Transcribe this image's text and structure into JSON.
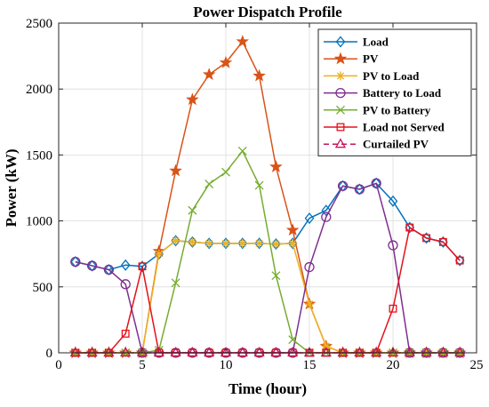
{
  "chart_data": {
    "type": "line",
    "title": "Power Dispatch Profile",
    "xlabel": "Time (hour)",
    "ylabel": "Power (kW)",
    "xlim": [
      0,
      25
    ],
    "ylim": [
      0,
      2500
    ],
    "xticks": [
      0,
      5,
      10,
      15,
      20,
      25
    ],
    "yticks": [
      0,
      500,
      1000,
      1500,
      2000,
      2500
    ],
    "grid": true,
    "legend_position": "top-right",
    "x": [
      1,
      2,
      3,
      4,
      5,
      6,
      7,
      8,
      9,
      10,
      11,
      12,
      13,
      14,
      15,
      16,
      17,
      18,
      19,
      20,
      21,
      22,
      23,
      24
    ],
    "series": [
      {
        "name": "Load",
        "color": "#0072BD",
        "marker": "diamond",
        "dashed": false,
        "values": [
          690,
          660,
          630,
          665,
          655,
          750,
          850,
          840,
          830,
          830,
          830,
          830,
          825,
          830,
          1020,
          1080,
          1265,
          1240,
          1285,
          1150,
          950,
          870,
          840,
          700
        ]
      },
      {
        "name": "PV",
        "color": "#D95319",
        "marker": "star",
        "dashed": false,
        "values": [
          0,
          0,
          0,
          0,
          0,
          770,
          1380,
          1920,
          2110,
          2200,
          2360,
          2100,
          1410,
          930,
          370,
          50,
          0,
          0,
          0,
          0,
          0,
          0,
          0,
          0
        ]
      },
      {
        "name": "PV to Load",
        "color": "#EDB120",
        "marker": "asterisk",
        "dashed": false,
        "values": [
          0,
          0,
          0,
          0,
          0,
          750,
          850,
          840,
          830,
          830,
          830,
          830,
          825,
          830,
          370,
          50,
          0,
          0,
          0,
          0,
          0,
          0,
          0,
          0
        ]
      },
      {
        "name": "Battery to Load",
        "color": "#7E2F8E",
        "marker": "circle",
        "dashed": false,
        "values": [
          690,
          660,
          630,
          520,
          0,
          0,
          0,
          0,
          0,
          0,
          0,
          0,
          0,
          0,
          650,
          1030,
          1265,
          1240,
          1285,
          815,
          0,
          0,
          0,
          0
        ]
      },
      {
        "name": "PV to Battery",
        "color": "#77AC30",
        "marker": "x",
        "dashed": false,
        "values": [
          0,
          0,
          0,
          0,
          0,
          20,
          530,
          1080,
          1280,
          1370,
          1530,
          1270,
          585,
          100,
          0,
          0,
          0,
          0,
          0,
          0,
          0,
          0,
          0,
          0
        ]
      },
      {
        "name": "Load not Served",
        "color": "#E5111B",
        "marker": "square",
        "dashed": false,
        "values": [
          0,
          0,
          0,
          145,
          655,
          0,
          0,
          0,
          0,
          0,
          0,
          0,
          0,
          0,
          0,
          0,
          0,
          0,
          0,
          335,
          950,
          870,
          840,
          700
        ]
      },
      {
        "name": "Curtailed PV",
        "color": "#C2185B",
        "marker": "triangle",
        "dashed": true,
        "values": [
          0,
          0,
          0,
          0,
          0,
          0,
          0,
          0,
          0,
          0,
          0,
          0,
          0,
          0,
          0,
          0,
          0,
          0,
          0,
          0,
          0,
          0,
          0,
          0
        ]
      }
    ]
  }
}
